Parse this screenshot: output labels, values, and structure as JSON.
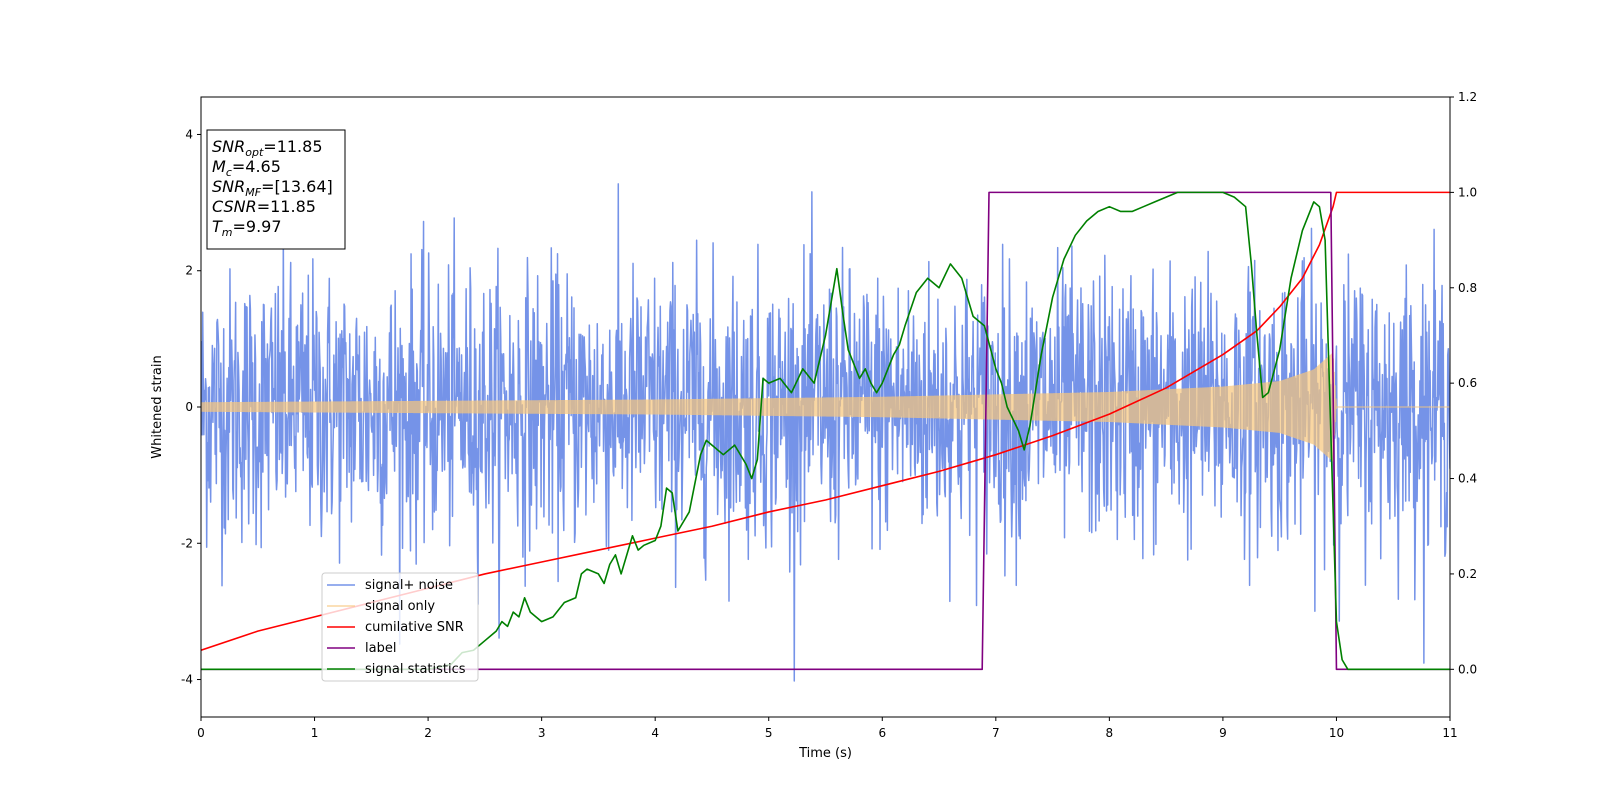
{
  "chart_data": {
    "type": "line",
    "title": "",
    "xlabel": "Time (s)",
    "ylabel": "Whitened strain",
    "y2label": "",
    "xlim": [
      0,
      11
    ],
    "ylim": [
      -4.55,
      4.55
    ],
    "y2lim": [
      -0.1,
      1.2
    ],
    "xticks": [
      0,
      1,
      2,
      3,
      4,
      5,
      6,
      7,
      8,
      9,
      10,
      11
    ],
    "yticks": [
      -4,
      -2,
      0,
      2,
      4
    ],
    "y2ticks": [
      0.0,
      0.2,
      0.4,
      0.6,
      0.8,
      1.0,
      1.2
    ],
    "grid": false,
    "legend_position": "lower-left",
    "info_box": [
      {
        "main": "SNR",
        "sub": "opt",
        "value": "=11.85"
      },
      {
        "main": "M",
        "sub": "c",
        "value": "=4.65"
      },
      {
        "main": "SNR",
        "sub": "MF",
        "value": "=[13.64]"
      },
      {
        "main": "CSNR",
        "sub": "",
        "value": "=11.85"
      },
      {
        "main": "T",
        "sub": "m",
        "value": "=9.97"
      }
    ],
    "series": [
      {
        "name": "signal+ noise",
        "axis": "left",
        "color": "#7593e8",
        "kind": "noise",
        "x_range": [
          0,
          11
        ],
        "std": 1.0,
        "min": -4.2,
        "max": 4.15
      },
      {
        "name": "signal only",
        "axis": "left",
        "color": "#f8c67a",
        "kind": "chirp",
        "x_range": [
          0,
          11
        ],
        "merger_time": 9.97,
        "amplitude_envelope": [
          [
            0,
            0.07
          ],
          [
            2,
            0.09
          ],
          [
            4,
            0.11
          ],
          [
            6,
            0.15
          ],
          [
            8,
            0.22
          ],
          [
            9,
            0.3
          ],
          [
            9.5,
            0.38
          ],
          [
            9.8,
            0.55
          ],
          [
            9.97,
            0.8
          ],
          [
            10.0,
            0.0
          ],
          [
            11,
            0.0
          ]
        ]
      },
      {
        "name": "cumilative SNR",
        "axis": "right",
        "color": "#ff0000",
        "x": [
          0,
          0.5,
          1,
          1.5,
          2,
          2.5,
          3,
          3.5,
          4,
          4.5,
          5,
          5.5,
          6,
          6.5,
          7,
          7.5,
          8,
          8.5,
          9,
          9.3,
          9.5,
          9.7,
          9.85,
          9.97,
          10.0,
          11
        ],
        "y": [
          0.04,
          0.08,
          0.11,
          0.14,
          0.17,
          0.2,
          0.225,
          0.25,
          0.275,
          0.3,
          0.33,
          0.355,
          0.385,
          0.415,
          0.45,
          0.49,
          0.535,
          0.59,
          0.66,
          0.71,
          0.76,
          0.82,
          0.89,
          0.97,
          1.0,
          1.0
        ]
      },
      {
        "name": "label",
        "axis": "right",
        "color": "#800080",
        "x": [
          0,
          6.88,
          6.94,
          9.95,
          10.0,
          11
        ],
        "y": [
          0,
          0,
          1,
          1,
          0,
          0
        ]
      },
      {
        "name": "signal statistics",
        "axis": "right",
        "color": "#008000",
        "x": [
          0,
          1,
          2,
          2.2,
          2.3,
          2.4,
          2.5,
          2.6,
          2.65,
          2.7,
          2.75,
          2.8,
          2.85,
          2.9,
          3.0,
          3.1,
          3.2,
          3.3,
          3.35,
          3.4,
          3.5,
          3.55,
          3.6,
          3.65,
          3.7,
          3.75,
          3.8,
          3.85,
          3.9,
          4.0,
          4.05,
          4.1,
          4.15,
          4.2,
          4.3,
          4.4,
          4.45,
          4.5,
          4.6,
          4.7,
          4.8,
          4.85,
          4.9,
          4.95,
          5.0,
          5.1,
          5.2,
          5.3,
          5.4,
          5.5,
          5.6,
          5.65,
          5.7,
          5.8,
          5.85,
          5.9,
          5.95,
          6.0,
          6.05,
          6.1,
          6.15,
          6.2,
          6.3,
          6.4,
          6.5,
          6.6,
          6.7,
          6.8,
          6.9,
          7.0,
          7.05,
          7.1,
          7.2,
          7.25,
          7.3,
          7.4,
          7.5,
          7.6,
          7.7,
          7.8,
          7.9,
          8.0,
          8.1,
          8.2,
          8.3,
          8.4,
          8.5,
          8.6,
          8.8,
          9.0,
          9.1,
          9.2,
          9.25,
          9.3,
          9.35,
          9.4,
          9.5,
          9.6,
          9.7,
          9.8,
          9.85,
          9.9,
          9.95,
          10.0,
          10.05,
          10.1,
          10.2,
          11
        ],
        "y": [
          0.0,
          0.0,
          0.0,
          0.01,
          0.035,
          0.04,
          0.06,
          0.08,
          0.1,
          0.09,
          0.12,
          0.11,
          0.15,
          0.12,
          0.1,
          0.11,
          0.14,
          0.15,
          0.2,
          0.21,
          0.2,
          0.18,
          0.22,
          0.24,
          0.2,
          0.24,
          0.28,
          0.25,
          0.26,
          0.27,
          0.3,
          0.38,
          0.37,
          0.29,
          0.33,
          0.45,
          0.48,
          0.47,
          0.45,
          0.47,
          0.43,
          0.4,
          0.44,
          0.61,
          0.6,
          0.61,
          0.58,
          0.63,
          0.6,
          0.7,
          0.84,
          0.75,
          0.67,
          0.61,
          0.63,
          0.6,
          0.58,
          0.6,
          0.63,
          0.66,
          0.68,
          0.72,
          0.79,
          0.82,
          0.8,
          0.85,
          0.82,
          0.74,
          0.72,
          0.63,
          0.6,
          0.55,
          0.5,
          0.46,
          0.51,
          0.66,
          0.78,
          0.86,
          0.91,
          0.94,
          0.96,
          0.97,
          0.96,
          0.96,
          0.97,
          0.98,
          0.99,
          1.0,
          1.0,
          1.0,
          0.99,
          0.97,
          0.85,
          0.7,
          0.57,
          0.58,
          0.67,
          0.82,
          0.92,
          0.98,
          0.97,
          0.9,
          0.5,
          0.1,
          0.02,
          0.0,
          0.0,
          0.0
        ]
      }
    ]
  }
}
